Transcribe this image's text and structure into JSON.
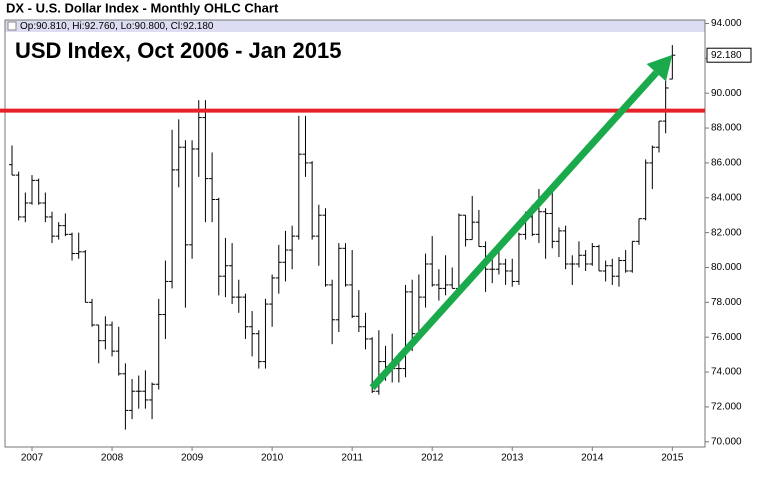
{
  "chart_data": {
    "type": "ohlc",
    "title": "DX - U.S. Dollar Index - Monthly OHLC Chart",
    "subtitle": "Op:90.810, Hi:92.760, Lo:90.800, Cl:92.180",
    "annotation": "USD Index, Oct 2006 - Jan 2015",
    "last_label": "92.180",
    "color": "#000000",
    "categories": [
      null,
      null,
      null,
      "2007",
      null,
      null,
      null,
      null,
      null,
      null,
      null,
      null,
      null,
      null,
      null,
      "2008",
      null,
      null,
      null,
      null,
      null,
      null,
      null,
      null,
      null,
      null,
      null,
      "2009",
      null,
      null,
      null,
      null,
      null,
      null,
      null,
      null,
      null,
      null,
      null,
      "2010",
      null,
      null,
      null,
      null,
      null,
      null,
      null,
      null,
      null,
      null,
      null,
      "2011",
      null,
      null,
      null,
      null,
      null,
      null,
      null,
      null,
      null,
      null,
      null,
      "2012",
      null,
      null,
      null,
      null,
      null,
      null,
      null,
      null,
      null,
      null,
      null,
      "2013",
      null,
      null,
      null,
      null,
      null,
      null,
      null,
      null,
      null,
      null,
      null,
      "2014",
      null,
      null,
      null,
      null,
      null,
      null,
      null,
      null,
      null,
      null,
      null,
      "2015"
    ],
    "open": [
      85.9,
      85.3,
      82.9,
      83.7,
      85.0,
      83.7,
      82.9,
      81.8,
      82.4,
      81.9,
      80.8,
      80.9,
      78.0,
      76.7,
      75.8,
      76.7,
      75.2,
      73.9,
      71.8,
      72.9,
      72.9,
      72.4,
      73.3,
      77.3,
      79.2,
      85.6,
      86.9,
      81.3,
      86.8,
      88.6,
      85.1,
      83.9,
      79.5,
      80.1,
      78.3,
      78.3,
      76.6,
      76.2,
      74.6,
      77.9,
      79.4,
      80.3,
      81.0,
      81.8,
      86.5,
      86.0,
      81.8,
      83.0,
      79.0,
      77.0,
      81.1,
      79.0,
      77.2,
      76.6,
      75.9,
      72.9,
      74.6,
      74.3,
      74.2,
      74.2,
      78.6,
      76.2,
      78.3,
      80.2,
      79.0,
      78.8,
      79.0,
      78.8,
      83.0,
      81.6,
      82.6,
      81.2,
      79.9,
      79.9,
      80.2,
      79.8,
      79.2,
      81.9,
      82.9,
      81.9,
      83.2,
      83.1,
      81.5,
      82.1,
      80.2,
      80.2,
      80.7,
      80.2,
      81.2,
      79.8,
      80.1,
      79.5,
      80.4,
      79.8,
      81.5,
      82.8,
      86.0,
      86.9,
      88.4,
      90.81
    ],
    "high": [
      87.0,
      85.5,
      84.3,
      85.3,
      85.1,
      84.3,
      83.2,
      82.6,
      83.1,
      82.0,
      82.0,
      81.0,
      78.2,
      76.7,
      77.2,
      76.9,
      76.6,
      74.5,
      73.6,
      73.8,
      74.1,
      73.4,
      78.2,
      80.4,
      87.9,
      88.5,
      87.3,
      87.3,
      89.6,
      89.6,
      86.6,
      84.0,
      81.7,
      81.4,
      79.3,
      78.5,
      77.5,
      76.4,
      78.2,
      79.6,
      81.3,
      82.1,
      82.4,
      88.7,
      88.7,
      86.1,
      83.6,
      83.4,
      79.3,
      81.4,
      81.4,
      81.0,
      78.7,
      77.4,
      76.0,
      76.4,
      75.5,
      76.2,
      75.1,
      79.0,
      79.3,
      79.6,
      80.8,
      81.8,
      79.9,
      80.7,
      80.0,
      83.1,
      83.0,
      84.1,
      83.3,
      81.5,
      80.6,
      81.3,
      80.5,
      80.5,
      82.0,
      83.2,
      83.6,
      84.5,
      83.4,
      84.8,
      82.3,
      82.4,
      80.7,
      81.5,
      81.0,
      81.4,
      81.3,
      80.4,
      80.5,
      80.6,
      81.0,
      81.5,
      82.8,
      86.2,
      87.0,
      88.4,
      90.8,
      92.76
    ],
    "low": [
      85.3,
      82.7,
      82.6,
      83.6,
      83.6,
      82.6,
      81.4,
      81.6,
      81.8,
      80.4,
      80.5,
      78.0,
      76.6,
      74.5,
      75.3,
      74.9,
      73.8,
      70.7,
      71.3,
      71.9,
      71.9,
      71.3,
      73.0,
      75.9,
      78.8,
      84.6,
      77.7,
      80.5,
      85.2,
      82.6,
      82.6,
      78.4,
      78.3,
      77.9,
      77.4,
      75.9,
      74.9,
      74.2,
      74.2,
      76.6,
      78.5,
      79.2,
      79.9,
      81.6,
      85.2,
      81.6,
      80.1,
      78.9,
      75.6,
      76.3,
      78.9,
      77.1,
      76.3,
      75.3,
      72.8,
      72.7,
      73.5,
      73.4,
      73.4,
      73.7,
      75.2,
      76.1,
      77.7,
      78.9,
      78.1,
      78.4,
      78.8,
      78.6,
      81.2,
      81.6,
      81.2,
      78.6,
      79.1,
      79.6,
      79.0,
      78.9,
      79.0,
      81.6,
      81.8,
      81.4,
      80.5,
      81.1,
      80.6,
      79.9,
      79.0,
      80.0,
      79.8,
      80.1,
      79.8,
      79.2,
      79.0,
      78.9,
      79.7,
      79.7,
      81.3,
      82.7,
      84.5,
      86.6,
      87.7,
      90.8
    ],
    "close": [
      85.3,
      82.9,
      83.7,
      85.0,
      83.7,
      82.9,
      81.8,
      82.4,
      81.9,
      80.8,
      80.9,
      78.0,
      76.7,
      75.8,
      76.7,
      75.2,
      73.9,
      71.8,
      72.9,
      72.9,
      72.4,
      73.3,
      77.3,
      79.2,
      85.6,
      86.9,
      81.3,
      86.8,
      88.6,
      85.1,
      83.9,
      79.5,
      80.1,
      78.3,
      78.3,
      76.6,
      76.2,
      74.6,
      77.9,
      79.4,
      80.3,
      81.0,
      81.8,
      86.5,
      86.0,
      81.8,
      83.0,
      79.0,
      77.0,
      81.1,
      79.0,
      77.2,
      76.6,
      75.9,
      72.9,
      74.6,
      74.3,
      74.2,
      74.2,
      78.6,
      76.2,
      78.3,
      80.2,
      79.0,
      78.8,
      79.0,
      78.8,
      83.0,
      81.6,
      82.6,
      81.2,
      79.9,
      79.9,
      80.2,
      79.8,
      79.2,
      81.9,
      82.9,
      81.9,
      83.2,
      83.1,
      81.5,
      82.1,
      80.2,
      80.2,
      80.7,
      80.2,
      81.2,
      79.8,
      80.1,
      79.5,
      80.4,
      79.8,
      81.5,
      82.8,
      86.0,
      86.9,
      88.4,
      90.3,
      92.18
    ],
    "ylim": [
      69.7,
      94.2
    ],
    "yticks": [
      {
        "value": 70,
        "label": "70.000"
      },
      {
        "value": 72,
        "label": "72.000"
      },
      {
        "value": 74,
        "label": "74.000"
      },
      {
        "value": 76,
        "label": "76.000"
      },
      {
        "value": 78,
        "label": "78.000"
      },
      {
        "value": 80,
        "label": "80.000"
      },
      {
        "value": 82,
        "label": "82.000"
      },
      {
        "value": 84,
        "label": "84.000"
      },
      {
        "value": 86,
        "label": "86.000"
      },
      {
        "value": 88,
        "label": "88.000"
      },
      {
        "value": 90,
        "label": "90.000"
      },
      {
        "value": 92,
        "label": "92.000"
      },
      {
        "value": 94,
        "label": "94.000"
      }
    ],
    "hline": {
      "value": 89,
      "color": "#e8202a"
    },
    "arrow": {
      "x_index": [
        54,
        99
      ],
      "y": [
        73.1,
        92.2
      ],
      "color": "#1aaa4b"
    },
    "grid": false
  }
}
